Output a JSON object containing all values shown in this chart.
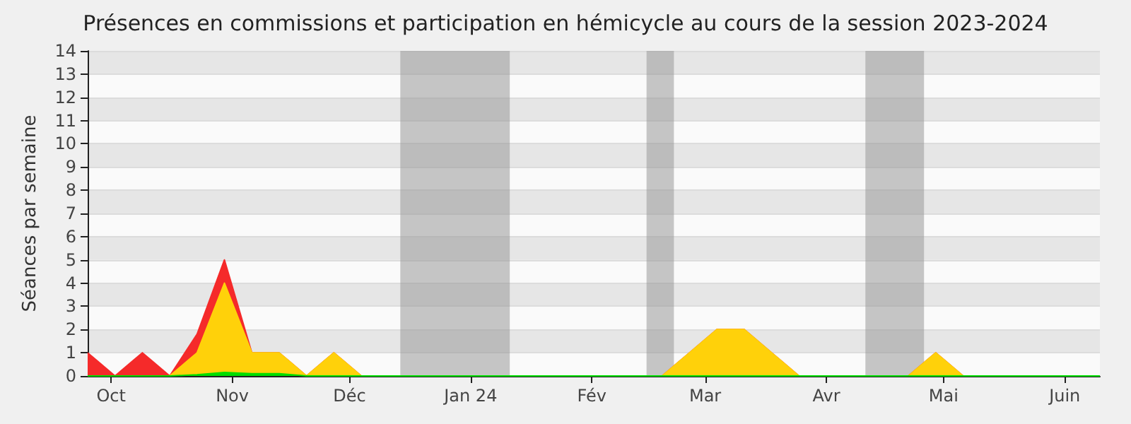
{
  "chart_data": {
    "type": "area",
    "title": "Présences en commissions et participation en hémicycle au cours de la session 2023-2024",
    "ylabel": "Séances par semaine",
    "stacked": true,
    "x": [
      "2023-09-25",
      "2023-10-02",
      "2023-10-09",
      "2023-10-16",
      "2023-10-23",
      "2023-10-30",
      "2023-11-06",
      "2023-11-13",
      "2023-11-20",
      "2023-11-27",
      "2023-12-04",
      "2023-12-11",
      "2023-12-18",
      "2023-12-25",
      "2024-01-01",
      "2024-01-08",
      "2024-01-15",
      "2024-01-22",
      "2024-01-29",
      "2024-02-05",
      "2024-02-12",
      "2024-02-19",
      "2024-02-26",
      "2024-03-04",
      "2024-03-11",
      "2024-03-18",
      "2024-03-25",
      "2024-04-01",
      "2024-04-08",
      "2024-04-15",
      "2024-04-22",
      "2024-04-29",
      "2024-05-06",
      "2024-05-13",
      "2024-05-20",
      "2024-05-27",
      "2024-06-03",
      "2024-06-10"
    ],
    "series": [
      {
        "color": "#00dd00",
        "values": [
          0,
          0,
          0,
          0,
          0.05,
          0.15,
          0.1,
          0.1,
          0,
          0,
          0,
          0,
          0,
          0,
          0,
          0,
          0,
          0,
          0,
          0,
          0,
          0,
          0,
          0,
          0,
          0,
          0,
          0,
          0,
          0,
          0,
          0,
          0,
          0,
          0,
          0,
          0,
          0
        ]
      },
      {
        "color": "#ffd10a",
        "values": [
          0,
          0,
          0,
          0,
          0.95,
          3.85,
          0.9,
          0.9,
          0,
          1,
          0,
          0,
          0,
          0,
          0,
          0,
          0,
          0,
          0,
          0,
          0,
          0,
          1,
          2,
          2,
          1,
          0,
          0,
          0,
          0,
          0,
          1,
          0,
          0,
          0,
          0,
          0,
          0
        ]
      },
      {
        "color": "#f52a2a",
        "values": [
          1,
          0,
          1,
          0,
          0.8,
          1,
          0,
          0,
          0,
          0,
          0,
          0,
          0,
          0,
          0,
          0,
          0,
          0,
          0,
          0,
          0,
          0,
          0,
          0,
          0,
          0,
          0,
          0,
          0,
          0,
          0,
          0,
          0,
          0,
          0,
          0,
          0,
          0
        ]
      }
    ],
    "xlim": [
      "2023-09-25",
      "2024-06-10"
    ],
    "xticks": [
      {
        "value": "2023-10-01",
        "label": "Oct"
      },
      {
        "value": "2023-11-01",
        "label": "Nov"
      },
      {
        "value": "2023-12-01",
        "label": "Déc"
      },
      {
        "value": "2024-01-01",
        "label": "Jan 24"
      },
      {
        "value": "2024-02-01",
        "label": "Fév"
      },
      {
        "value": "2024-03-01",
        "label": "Mar"
      },
      {
        "value": "2024-04-01",
        "label": "Avr"
      },
      {
        "value": "2024-05-01",
        "label": "Mai"
      },
      {
        "value": "2024-06-01",
        "label": "Juin"
      }
    ],
    "ylim": [
      0,
      14
    ],
    "yticks": [
      0,
      1,
      2,
      3,
      4,
      5,
      6,
      7,
      8,
      9,
      10,
      11,
      12,
      13,
      14
    ],
    "bands": [
      {
        "axis": "x",
        "from": "2023-12-14",
        "to": "2024-01-11",
        "color": "#999999"
      },
      {
        "axis": "x",
        "from": "2024-02-15",
        "to": "2024-02-22",
        "color": "#999999"
      },
      {
        "axis": "x",
        "from": "2024-04-11",
        "to": "2024-04-26",
        "color": "#999999"
      }
    ],
    "grid": "y",
    "marker": "none"
  }
}
